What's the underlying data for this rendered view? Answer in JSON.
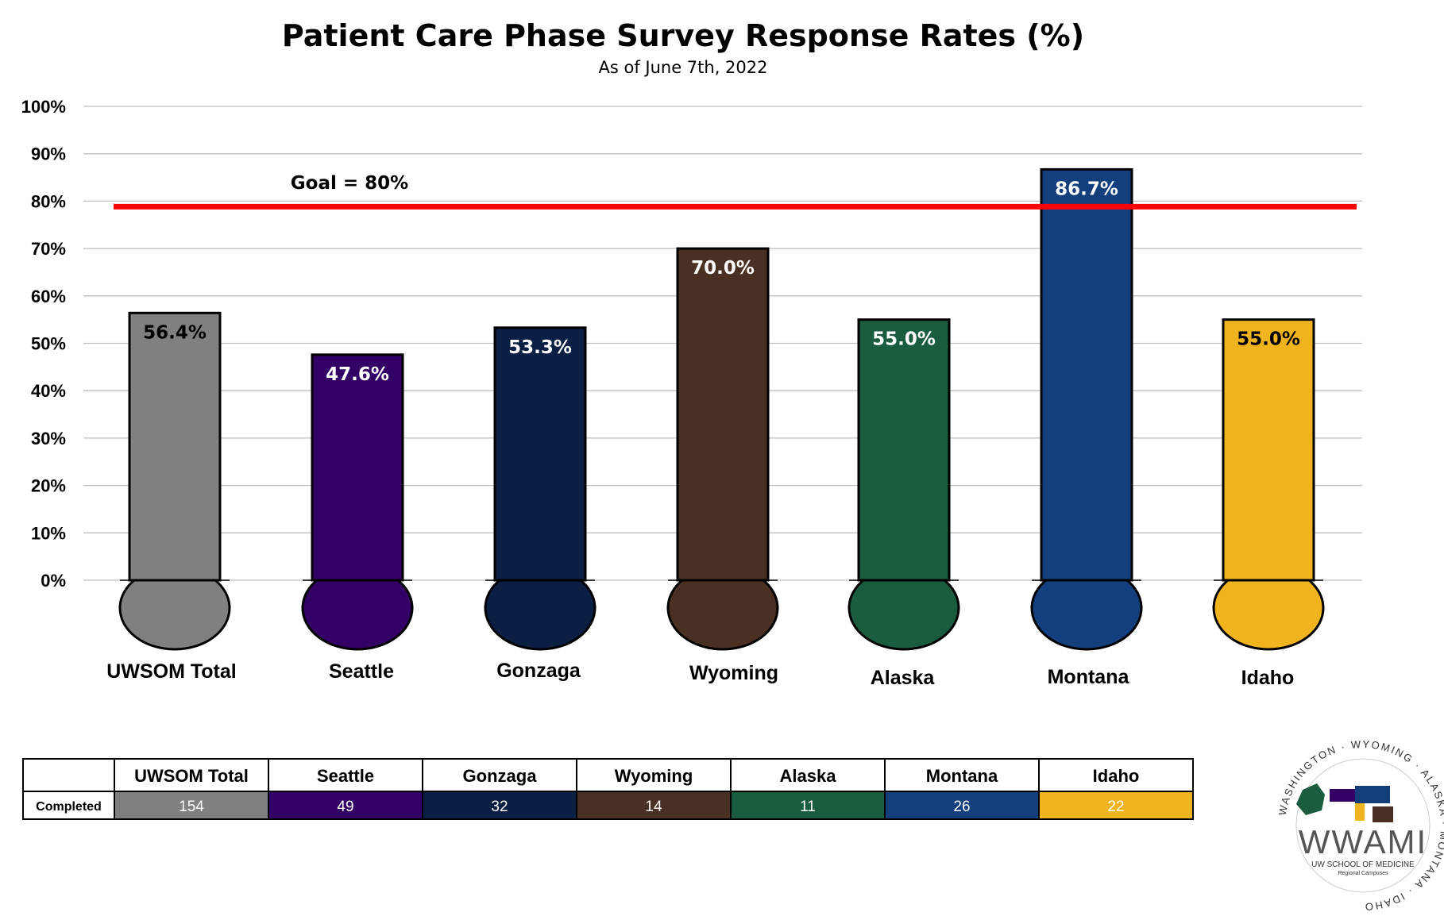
{
  "chart_data": {
    "type": "bar",
    "title": "Patient Care Phase Survey Response Rates (%)",
    "subtitle": "As of June 7th, 2022",
    "categories": [
      "UWSOM Total",
      "Seattle",
      "Gonzaga",
      "Wyoming",
      "Alaska",
      "Montana",
      "Idaho"
    ],
    "values": [
      56.4,
      47.6,
      53.3,
      70.0,
      55.0,
      86.7,
      55.0
    ],
    "data_labels": [
      "56.4%",
      "47.6%",
      "53.3%",
      "70.0%",
      "55.0%",
      "86.7%",
      "55.0%"
    ],
    "colors": [
      "#808080",
      "#330066",
      "#0B1F45",
      "#4A3022",
      "#1A5C3E",
      "#133F7D",
      "#F0B51E"
    ],
    "label_colors": [
      "#000000",
      "#ffffff",
      "#ffffff",
      "#ffffff",
      "#ffffff",
      "#ffffff",
      "#000000"
    ],
    "ylim": [
      0,
      100
    ],
    "yticks": [
      0,
      10,
      20,
      30,
      40,
      50,
      60,
      70,
      80,
      90,
      100
    ],
    "ytick_labels": [
      "0%",
      "10%",
      "20%",
      "30%",
      "40%",
      "50%",
      "60%",
      "70%",
      "80%",
      "90%",
      "100%"
    ],
    "grid": true,
    "goal": {
      "value": 80,
      "label": "Goal = 80%",
      "color": "#FF0000"
    },
    "xlabel": "",
    "ylabel": ""
  },
  "table": {
    "headers": [
      "UWSOM Total",
      "Seattle",
      "Gonzaga",
      "Wyoming",
      "Alaska",
      "Montana",
      "Idaho"
    ],
    "row_label": "Completed",
    "values": [
      "154",
      "49",
      "32",
      "14",
      "11",
      "26",
      "22"
    ],
    "colors": [
      "#808080",
      "#330066",
      "#0B1F45",
      "#4A3022",
      "#1A5C3E",
      "#133F7D",
      "#F0B51E"
    ]
  },
  "logo": {
    "ring_text": "WASHINGTON · WYOMING · ALASKA · MONTANA · IDAHO",
    "name": "WWAMI",
    "line1": "UW SCHOOL OF MEDICINE",
    "line2": "Regional Campuses"
  }
}
